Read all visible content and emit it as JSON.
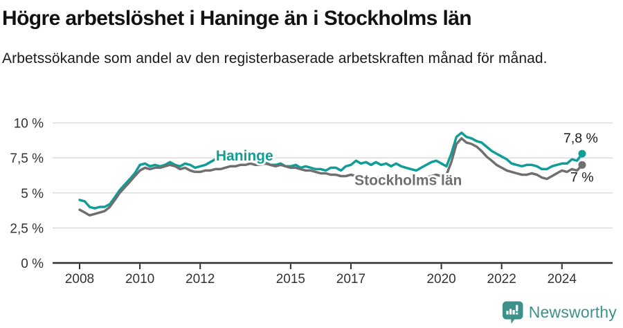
{
  "header": {
    "title": "Högre arbetslöshet i Haninge än i Stockholms län",
    "subtitle": "Arbetssökande som andel av den registerbaserade arbetskraften månad för månad."
  },
  "footer": {
    "brand": "Newsworthy"
  },
  "colors": {
    "haninge": "#0f9e97",
    "stockholm": "#6f6f6f",
    "grid": "#dcdcdc",
    "axis": "#2e2e2e",
    "tick_text": "#333333",
    "value_text": "#1a1a1a",
    "logo": "#3d918a"
  },
  "chart_data": {
    "type": "line",
    "title": "Högre arbetslöshet i Haninge än i Stockholms län",
    "subtitle": "Arbetssökande som andel av den registerbaserade arbetskraften månad för månad.",
    "unit": "%",
    "grid": true,
    "xlim": [
      2007.1,
      2025.7
    ],
    "ylim": [
      0,
      10.5
    ],
    "yticks": [
      {
        "label": "10 %",
        "value": 10
      },
      {
        "label": "7,5 %",
        "value": 7.5
      },
      {
        "label": "5 %",
        "value": 5
      },
      {
        "label": "2,5 %",
        "value": 2.5
      },
      {
        "label": "0 %",
        "value": 0
      }
    ],
    "xticks": [
      {
        "label": "2008",
        "value": 2008
      },
      {
        "label": "2010",
        "value": 2010
      },
      {
        "label": "2012",
        "value": 2012
      },
      {
        "label": "2015",
        "value": 2015
      },
      {
        "label": "2017",
        "value": 2017
      },
      {
        "label": "2020",
        "value": 2020
      },
      {
        "label": "2022",
        "value": 2022
      },
      {
        "label": "2024",
        "value": 2024
      }
    ],
    "x": [
      2008,
      2008.17,
      2008.33,
      2008.5,
      2008.67,
      2008.83,
      2009,
      2009.17,
      2009.33,
      2009.5,
      2009.67,
      2009.83,
      2010,
      2010.17,
      2010.33,
      2010.5,
      2010.67,
      2010.83,
      2011,
      2011.17,
      2011.33,
      2011.5,
      2011.67,
      2011.83,
      2012,
      2012.17,
      2012.33,
      2012.5,
      2012.67,
      2012.83,
      2013,
      2013.17,
      2013.33,
      2013.5,
      2013.67,
      2013.83,
      2014,
      2014.17,
      2014.33,
      2014.5,
      2014.67,
      2014.83,
      2015,
      2015.17,
      2015.33,
      2015.5,
      2015.67,
      2015.83,
      2016,
      2016.17,
      2016.33,
      2016.5,
      2016.67,
      2016.83,
      2017,
      2017.17,
      2017.33,
      2017.5,
      2017.67,
      2017.83,
      2018,
      2018.17,
      2018.33,
      2018.5,
      2018.67,
      2018.83,
      2019,
      2019.17,
      2019.33,
      2019.5,
      2019.67,
      2019.83,
      2020,
      2020.17,
      2020.33,
      2020.5,
      2020.67,
      2020.83,
      2021,
      2021.17,
      2021.33,
      2021.5,
      2021.67,
      2021.83,
      2022,
      2022.17,
      2022.33,
      2022.5,
      2022.67,
      2022.83,
      2023,
      2023.17,
      2023.33,
      2023.5,
      2023.67,
      2023.83,
      2024,
      2024.17,
      2024.33,
      2024.5,
      2024.67
    ],
    "series": [
      {
        "name": "Haninge",
        "color_key": "haninge",
        "end_label": "7,8 %",
        "end_value": 7.8,
        "value_label_side": "above",
        "label_anchor": {
          "year": 2012.52,
          "pct": 7.31
        },
        "values": [
          4.5,
          4.4,
          4.0,
          3.9,
          4.0,
          4.0,
          4.2,
          4.7,
          5.2,
          5.6,
          6.0,
          6.4,
          7.0,
          7.1,
          6.9,
          7.0,
          6.9,
          7.0,
          7.2,
          7.0,
          6.9,
          7.1,
          7.0,
          6.8,
          6.9,
          7.0,
          7.2,
          7.4,
          7.4,
          7.5,
          7.5,
          7.6,
          7.5,
          7.5,
          7.4,
          7.4,
          7.3,
          7.2,
          7.0,
          7.0,
          7.1,
          6.9,
          6.9,
          7.0,
          6.8,
          6.9,
          6.8,
          6.7,
          6.7,
          6.6,
          6.8,
          6.8,
          6.6,
          6.9,
          7.0,
          7.3,
          7.1,
          7.2,
          7.0,
          7.2,
          7.0,
          7.1,
          6.9,
          7.1,
          6.9,
          6.8,
          6.7,
          6.6,
          6.8,
          7.0,
          7.2,
          7.3,
          7.1,
          6.9,
          7.8,
          9.0,
          9.3,
          9.0,
          8.9,
          8.7,
          8.6,
          8.3,
          8.0,
          7.8,
          7.6,
          7.4,
          7.1,
          7.0,
          6.9,
          7.0,
          7.0,
          6.9,
          6.7,
          6.7,
          6.9,
          7.0,
          7.1,
          7.1,
          7.4,
          7.3,
          7.8
        ]
      },
      {
        "name": "Stockholms län",
        "color_key": "stockholm",
        "end_label": "7 %",
        "end_value": 7.0,
        "value_label_side": "below",
        "label_anchor": {
          "year": 2017.12,
          "pct": 5.56
        },
        "values": [
          3.8,
          3.6,
          3.4,
          3.5,
          3.6,
          3.7,
          4.0,
          4.5,
          5.0,
          5.4,
          5.8,
          6.2,
          6.6,
          6.8,
          6.7,
          6.8,
          6.8,
          6.9,
          7.0,
          6.9,
          6.7,
          6.8,
          6.6,
          6.5,
          6.5,
          6.6,
          6.6,
          6.7,
          6.7,
          6.8,
          6.9,
          6.9,
          7.0,
          7.0,
          7.1,
          7.0,
          7.0,
          7.1,
          7.0,
          6.9,
          7.0,
          6.9,
          6.8,
          6.8,
          6.7,
          6.6,
          6.6,
          6.5,
          6.4,
          6.4,
          6.3,
          6.3,
          6.2,
          6.2,
          6.3,
          6.2,
          6.2,
          6.2,
          6.1,
          6.1,
          6.1,
          6.0,
          6.0,
          6.0,
          5.9,
          6.0,
          6.0,
          6.0,
          6.1,
          6.1,
          6.2,
          6.3,
          6.2,
          6.3,
          7.2,
          8.5,
          8.9,
          8.6,
          8.5,
          8.3,
          8.0,
          7.6,
          7.3,
          7.0,
          6.8,
          6.6,
          6.5,
          6.4,
          6.3,
          6.3,
          6.4,
          6.3,
          6.1,
          6.0,
          6.2,
          6.4,
          6.6,
          6.5,
          6.7,
          6.6,
          7.0
        ]
      }
    ],
    "legend_position": "inline-labels"
  }
}
